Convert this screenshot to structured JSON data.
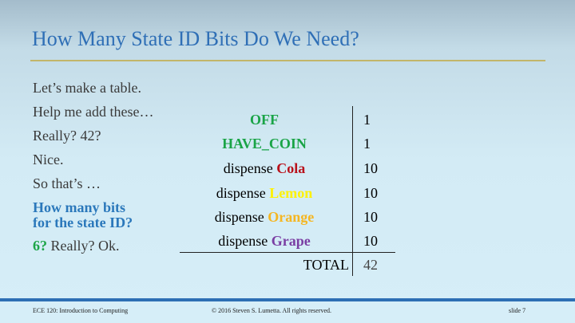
{
  "title": "How Many State ID Bits Do We Need?",
  "bullets": {
    "l1": "Let’s make a table.",
    "l2": "Help me add these…",
    "l3": "Really?  42?",
    "l4": "Nice.",
    "l5": "So that’s …",
    "q1": "How many bits",
    "q2": "for the state ID?",
    "ans_num": "6?",
    "ans_rest": " Really?  Ok."
  },
  "table": {
    "dispense": "dispense ",
    "rows": [
      {
        "name": "OFF",
        "value": "1"
      },
      {
        "name": "HAVE_COIN",
        "value": "1"
      },
      {
        "name": "Cola",
        "value": "10"
      },
      {
        "name": "Lemon",
        "value": "10"
      },
      {
        "name": "Orange",
        "value": "10"
      },
      {
        "name": "Grape",
        "value": "10"
      }
    ],
    "total_label": "TOTAL",
    "total_value": "42"
  },
  "colors": {
    "title": "#2f6fb6",
    "rule": "#c2b66a",
    "question": "#2b78bb",
    "green": "#1da548",
    "cola": "#b9121b",
    "lemon": "#fff200",
    "orange": "#f5b622",
    "grape": "#7a3ea3",
    "footer_bar": "#2d6fb4"
  },
  "footer": {
    "course": "ECE 120: Introduction to Computing",
    "copyright": "© 2016 Steven S. Lumetta.  All rights reserved.",
    "slide": "slide 7"
  }
}
